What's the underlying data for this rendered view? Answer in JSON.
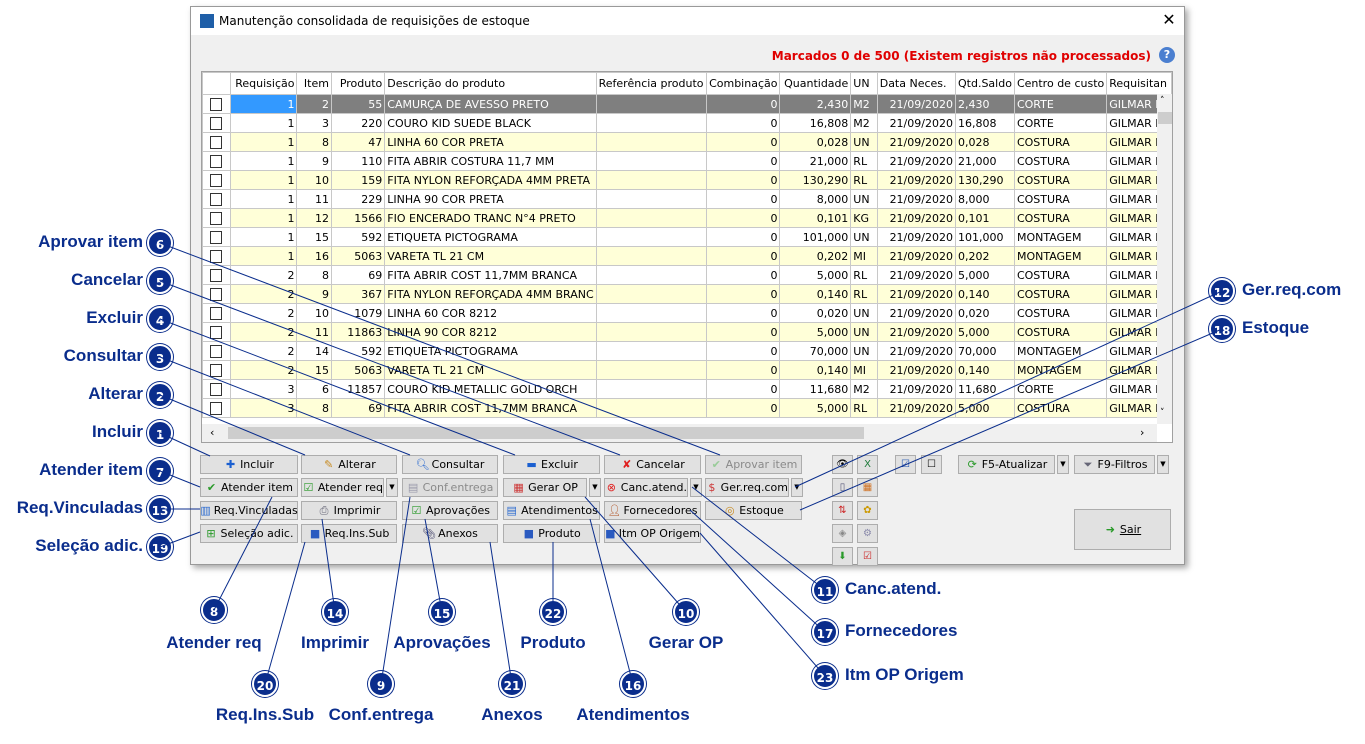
{
  "window": {
    "title": "Manutenção consolidada de requisições de estoque",
    "close_icon": "close-icon",
    "status": "Marcados 0 de 500 (Existem registros não processados)",
    "help_icon": "help-icon"
  },
  "colors": {
    "status": "#e00000",
    "selected_row": "#7f7f7f",
    "alt_row": "#ffffd8",
    "callout": "#0a2d8c"
  },
  "table": {
    "columns": [
      "",
      "Requisição",
      "Item",
      "Produto",
      "Descrição do produto",
      "Referência produto",
      "Combinação",
      "Quantidade",
      "UN",
      "Data Neces.",
      "Qtd.Saldo",
      "Centro de custo",
      "Requisitan"
    ],
    "rows": [
      [
        "1",
        "2",
        "55",
        "CAMURÇA DE AVESSO PRETO",
        "",
        "0",
        "2,430",
        "M2",
        "21/09/2020",
        "2,430",
        "CORTE",
        "GILMAR LU"
      ],
      [
        "1",
        "3",
        "220",
        "COURO KID SUEDE BLACK",
        "",
        "0",
        "16,808",
        "M2",
        "21/09/2020",
        "16,808",
        "CORTE",
        "GILMAR LU"
      ],
      [
        "1",
        "8",
        "47",
        "LINHA 60 COR PRETA",
        "",
        "0",
        "0,028",
        "UN",
        "21/09/2020",
        "0,028",
        "COSTURA",
        "GILMAR LU"
      ],
      [
        "1",
        "9",
        "110",
        "FITA ABRIR COSTURA 11,7 MM",
        "",
        "0",
        "21,000",
        "RL",
        "21/09/2020",
        "21,000",
        "COSTURA",
        "GILMAR LU"
      ],
      [
        "1",
        "10",
        "159",
        "FITA NYLON REFORÇADA 4MM PRETA",
        "",
        "0",
        "130,290",
        "RL",
        "21/09/2020",
        "130,290",
        "COSTURA",
        "GILMAR LU"
      ],
      [
        "1",
        "11",
        "229",
        "LINHA 90 COR PRETA",
        "",
        "0",
        "8,000",
        "UN",
        "21/09/2020",
        "8,000",
        "COSTURA",
        "GILMAR LU"
      ],
      [
        "1",
        "12",
        "1566",
        "FIO ENCERADO TRANC N°4 PRETO",
        "",
        "0",
        "0,101",
        "KG",
        "21/09/2020",
        "0,101",
        "COSTURA",
        "GILMAR LU"
      ],
      [
        "1",
        "15",
        "592",
        "ETIQUETA PICTOGRAMA",
        "",
        "0",
        "101,000",
        "UN",
        "21/09/2020",
        "101,000",
        "MONTAGEM",
        "GILMAR LU"
      ],
      [
        "1",
        "16",
        "5063",
        "VARETA TL 21 CM",
        "",
        "0",
        "0,202",
        "MI",
        "21/09/2020",
        "0,202",
        "MONTAGEM",
        "GILMAR LU"
      ],
      [
        "2",
        "8",
        "69",
        "FITA ABRIR COST 11,7MM BRANCA",
        "",
        "0",
        "5,000",
        "RL",
        "21/09/2020",
        "5,000",
        "COSTURA",
        "GILMAR LU"
      ],
      [
        "2",
        "9",
        "367",
        "FITA NYLON REFORÇADA 4MM BRANC",
        "",
        "0",
        "0,140",
        "RL",
        "21/09/2020",
        "0,140",
        "COSTURA",
        "GILMAR LU"
      ],
      [
        "2",
        "10",
        "1079",
        "LINHA 60 COR 8212",
        "",
        "0",
        "0,020",
        "UN",
        "21/09/2020",
        "0,020",
        "COSTURA",
        "GILMAR LU"
      ],
      [
        "2",
        "11",
        "11863",
        "LINHA 90 COR 8212",
        "",
        "0",
        "5,000",
        "UN",
        "21/09/2020",
        "5,000",
        "COSTURA",
        "GILMAR LU"
      ],
      [
        "2",
        "14",
        "592",
        "ETIQUETA PICTOGRAMA",
        "",
        "0",
        "70,000",
        "UN",
        "21/09/2020",
        "70,000",
        "MONTAGEM",
        "GILMAR LU"
      ],
      [
        "2",
        "15",
        "5063",
        "VARETA TL 21 CM",
        "",
        "0",
        "0,140",
        "MI",
        "21/09/2020",
        "0,140",
        "MONTAGEM",
        "GILMAR LU"
      ],
      [
        "3",
        "6",
        "11857",
        "COURO KID METALLIC GOLD ORCH",
        "",
        "0",
        "11,680",
        "M2",
        "21/09/2020",
        "11,680",
        "CORTE",
        "GILMAR LU"
      ],
      [
        "3",
        "8",
        "69",
        "FITA ABRIR COST 11,7MM BRANCA",
        "",
        "0",
        "5,000",
        "RL",
        "21/09/2020",
        "5,000",
        "COSTURA",
        "GILMAR LU"
      ]
    ]
  },
  "buttons": {
    "incluir": "Incluir",
    "alterar": "Alterar",
    "consultar": "Consultar",
    "excluir": "Excluir",
    "cancelar": "Cancelar",
    "aprovar_item": "Aprovar item",
    "atender_item": "Atender item",
    "atender_req": "Atender req",
    "conf_entrega": "Conf.entrega",
    "gerar_op": "Gerar OP",
    "canc_atend": "Canc.atend.",
    "ger_req_com": "Ger.req.com",
    "req_vinculadas": "Req.Vinculadas",
    "imprimir": "Imprimir",
    "aprovacoes": "Aprovações",
    "atendimentos": "Atendimentos",
    "fornecedores": "Fornecedores",
    "estoque": "Estoque",
    "selecao_adic": "Seleção adic.",
    "req_ins_sub": "Req.Ins.Sub",
    "anexos": "Anexos",
    "produto": "Produto",
    "itm_op_origem": "Itm OP Origem",
    "f5": "F5-Atualizar",
    "f9": "F9-Filtros",
    "sair": "Sair"
  },
  "callouts": [
    {
      "n": "6",
      "label": "Aprovar item"
    },
    {
      "n": "5",
      "label": "Cancelar"
    },
    {
      "n": "4",
      "label": "Excluir"
    },
    {
      "n": "3",
      "label": "Consultar"
    },
    {
      "n": "2",
      "label": "Alterar"
    },
    {
      "n": "1",
      "label": "Incluir"
    },
    {
      "n": "7",
      "label": "Atender item"
    },
    {
      "n": "13",
      "label": "Req.Vinculadas"
    },
    {
      "n": "19",
      "label": "Seleção adic."
    },
    {
      "n": "12",
      "label": "Ger.req.com"
    },
    {
      "n": "18",
      "label": "Estoque"
    },
    {
      "n": "11",
      "label": "Canc.atend."
    },
    {
      "n": "17",
      "label": "Fornecedores"
    },
    {
      "n": "23",
      "label": "Itm OP Origem"
    },
    {
      "n": "8",
      "label": "Atender req"
    },
    {
      "n": "14",
      "label": "Imprimir"
    },
    {
      "n": "15",
      "label": "Aprovações"
    },
    {
      "n": "22",
      "label": "Produto"
    },
    {
      "n": "10",
      "label": "Gerar OP"
    },
    {
      "n": "20",
      "label": "Req.Ins.Sub"
    },
    {
      "n": "9",
      "label": "Conf.entrega"
    },
    {
      "n": "21",
      "label": "Anexos"
    },
    {
      "n": "16",
      "label": "Atendimentos"
    }
  ]
}
